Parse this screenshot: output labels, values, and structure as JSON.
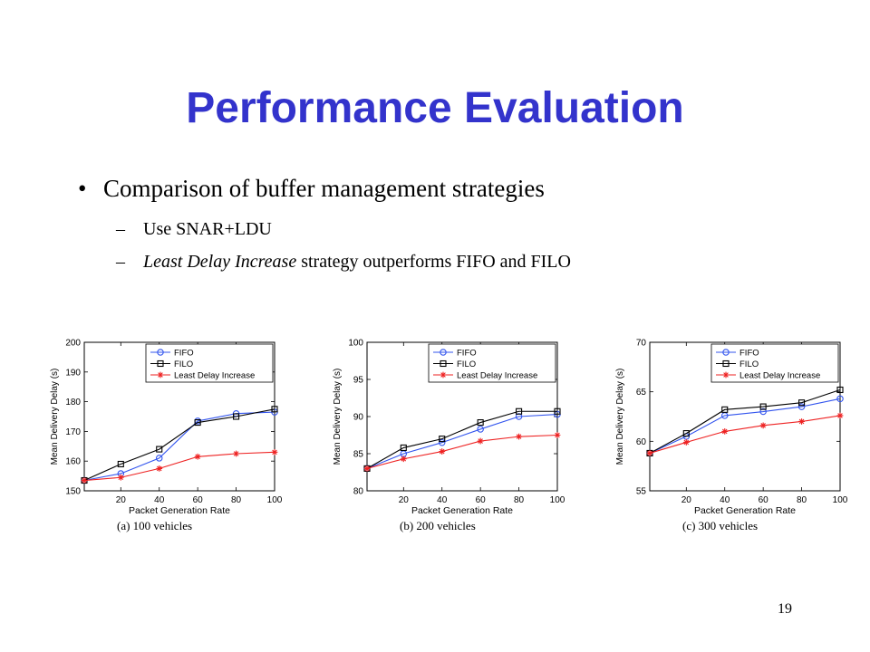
{
  "slide": {
    "title": "Performance Evaluation",
    "bullet": "Comparison of buffer management strategies",
    "sub1": "Use SNAR+LDU",
    "sub2_italic": "Least Delay Increase",
    "sub2_rest": " strategy outperforms FIFO and FILO",
    "page_number": "19",
    "bullet_char": "•",
    "dash_char": "–"
  },
  "chart_data": [
    {
      "type": "line",
      "caption": "(a) 100 vehicles",
      "xlabel": "Packet Generation Rate",
      "ylabel": "Mean Delivery Delay (s)",
      "xlim": [
        1,
        100
      ],
      "ylim": [
        150,
        200
      ],
      "xticks": [
        20,
        40,
        60,
        80,
        100
      ],
      "yticks": [
        150,
        160,
        170,
        180,
        190,
        200
      ],
      "x": [
        1,
        20,
        40,
        60,
        80,
        100
      ],
      "legend_position": "top-right",
      "series": [
        {
          "name": "FIFO",
          "color": "#3355ee",
          "marker": "circle",
          "values": [
            153.5,
            155.8,
            161.0,
            173.5,
            176.0,
            176.5
          ]
        },
        {
          "name": "FILO",
          "color": "#000000",
          "marker": "square",
          "values": [
            153.5,
            159.0,
            164.0,
            173.0,
            175.0,
            177.5
          ]
        },
        {
          "name": "Least Delay Increase",
          "color": "#ee2222",
          "marker": "star",
          "values": [
            153.5,
            154.5,
            157.5,
            161.5,
            162.5,
            163.0
          ]
        }
      ]
    },
    {
      "type": "line",
      "caption": "(b) 200 vehicles",
      "xlabel": "Packet Generation Rate",
      "ylabel": "Mean Delivery Delay (s)",
      "xlim": [
        1,
        100
      ],
      "ylim": [
        80,
        100
      ],
      "xticks": [
        20,
        40,
        60,
        80,
        100
      ],
      "yticks": [
        80,
        85,
        90,
        95,
        100
      ],
      "x": [
        1,
        20,
        40,
        60,
        80,
        100
      ],
      "legend_position": "top-right",
      "series": [
        {
          "name": "FIFO",
          "color": "#3355ee",
          "marker": "circle",
          "values": [
            83.0,
            85.0,
            86.5,
            88.3,
            90.0,
            90.3
          ]
        },
        {
          "name": "FILO",
          "color": "#000000",
          "marker": "square",
          "values": [
            83.0,
            85.8,
            87.0,
            89.2,
            90.7,
            90.7
          ]
        },
        {
          "name": "Least Delay Increase",
          "color": "#ee2222",
          "marker": "star",
          "values": [
            83.0,
            84.3,
            85.3,
            86.7,
            87.3,
            87.5
          ]
        }
      ]
    },
    {
      "type": "line",
      "caption": "(c) 300 vehicles",
      "xlabel": "Packet Generation Rate",
      "ylabel": "Mean Delivery Delay (s)",
      "xlim": [
        1,
        100
      ],
      "ylim": [
        55,
        70
      ],
      "xticks": [
        20,
        40,
        60,
        80,
        100
      ],
      "yticks": [
        55,
        60,
        65,
        70
      ],
      "x": [
        1,
        20,
        40,
        60,
        80,
        100
      ],
      "legend_position": "top-right",
      "series": [
        {
          "name": "FIFO",
          "color": "#3355ee",
          "marker": "circle",
          "values": [
            58.8,
            60.5,
            62.6,
            63.0,
            63.5,
            64.3
          ]
        },
        {
          "name": "FILO",
          "color": "#000000",
          "marker": "square",
          "values": [
            58.8,
            60.8,
            63.2,
            63.5,
            63.9,
            65.2
          ]
        },
        {
          "name": "Least Delay Increase",
          "color": "#ee2222",
          "marker": "star",
          "values": [
            58.8,
            59.9,
            61.0,
            61.6,
            62.0,
            62.6
          ]
        }
      ]
    }
  ]
}
